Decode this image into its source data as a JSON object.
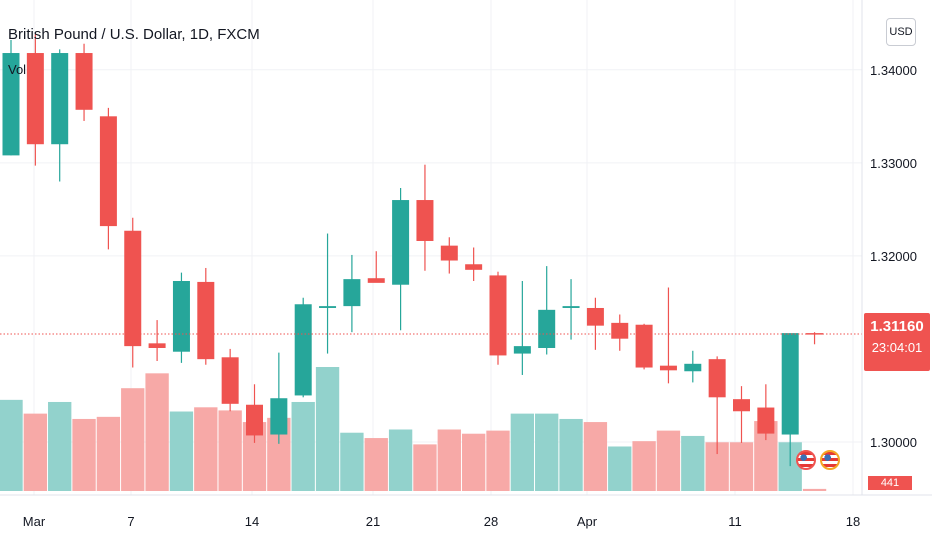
{
  "header": {
    "title": "British Pound / U.S. Dollar, 1D, FXCM",
    "volume_label": "Vol",
    "currency_button": "USD"
  },
  "price_badge": {
    "price": "1.31160",
    "countdown": "23:04:01"
  },
  "volume_badge": "441",
  "colors": {
    "up": "#26a69a",
    "down": "#ef5350",
    "up_volume": "#92d2cc",
    "down_volume": "#f7a9a7",
    "last_price_line": "#ef5350"
  },
  "event_icons": [
    "us-flag-icon",
    "us-flag-icon"
  ],
  "chart_data": {
    "type": "candlestick",
    "title": "British Pound / U.S. Dollar, 1D, FXCM",
    "x_tick_labels": [
      "Mar",
      "7",
      "14",
      "21",
      "28",
      "Apr",
      "11",
      "18"
    ],
    "y_tick_labels": [
      "1.34000",
      "1.33000",
      "1.32000",
      "1.30000"
    ],
    "ylim": [
      1.2943,
      1.3475
    ],
    "grid": true,
    "last_price": 1.3116,
    "candles": [
      {
        "date": "Feb 28",
        "o": 1.3308,
        "h": 1.3432,
        "l": 1.3308,
        "c": 1.3418
      },
      {
        "date": "Mar 1",
        "o": 1.3418,
        "h": 1.3438,
        "l": 1.3297,
        "c": 1.332
      },
      {
        "date": "Mar 2",
        "o": 1.332,
        "h": 1.3422,
        "l": 1.328,
        "c": 1.3418
      },
      {
        "date": "Mar 3",
        "o": 1.3418,
        "h": 1.3428,
        "l": 1.3345,
        "c": 1.3357
      },
      {
        "date": "Mar 4",
        "o": 1.335,
        "h": 1.3359,
        "l": 1.3207,
        "c": 1.3232
      },
      {
        "date": "Mar 7",
        "o": 1.3227,
        "h": 1.3241,
        "l": 1.308,
        "c": 1.3103
      },
      {
        "date": "Mar 8",
        "o": 1.3106,
        "h": 1.3131,
        "l": 1.3087,
        "c": 1.3101
      },
      {
        "date": "Mar 9",
        "o": 1.3097,
        "h": 1.3182,
        "l": 1.3085,
        "c": 1.3173
      },
      {
        "date": "Mar 10",
        "o": 1.3172,
        "h": 1.3187,
        "l": 1.3083,
        "c": 1.3089
      },
      {
        "date": "Mar 11",
        "o": 1.3091,
        "h": 1.31,
        "l": 1.3033,
        "c": 1.3041
      },
      {
        "date": "Mar 14",
        "o": 1.304,
        "h": 1.3062,
        "l": 1.2999,
        "c": 1.3007
      },
      {
        "date": "Mar 15",
        "o": 1.3008,
        "h": 1.3096,
        "l": 1.2998,
        "c": 1.3047
      },
      {
        "date": "Mar 16",
        "o": 1.305,
        "h": 1.3155,
        "l": 1.3048,
        "c": 1.3148
      },
      {
        "date": "Mar 17",
        "o": 1.3144,
        "h": 1.3224,
        "l": 1.3095,
        "c": 1.3146
      },
      {
        "date": "Mar 18",
        "o": 1.3146,
        "h": 1.3201,
        "l": 1.3118,
        "c": 1.3175
      },
      {
        "date": "Mar 21",
        "o": 1.3176,
        "h": 1.3205,
        "l": 1.3174,
        "c": 1.3171
      },
      {
        "date": "Mar 22",
        "o": 1.3169,
        "h": 1.3273,
        "l": 1.312,
        "c": 1.326
      },
      {
        "date": "Mar 23",
        "o": 1.326,
        "h": 1.3298,
        "l": 1.3184,
        "c": 1.3216
      },
      {
        "date": "Mar 24",
        "o": 1.3211,
        "h": 1.322,
        "l": 1.3181,
        "c": 1.3195
      },
      {
        "date": "Mar 25",
        "o": 1.3191,
        "h": 1.3209,
        "l": 1.3173,
        "c": 1.3185
      },
      {
        "date": "Mar 28",
        "o": 1.3179,
        "h": 1.3183,
        "l": 1.3083,
        "c": 1.3093
      },
      {
        "date": "Mar 29",
        "o": 1.3095,
        "h": 1.3173,
        "l": 1.3072,
        "c": 1.3103
      },
      {
        "date": "Mar 30",
        "o": 1.3101,
        "h": 1.3189,
        "l": 1.3094,
        "c": 1.3142
      },
      {
        "date": "Mar 31",
        "o": 1.3144,
        "h": 1.3175,
        "l": 1.311,
        "c": 1.3146
      },
      {
        "date": "Apr 1",
        "o": 1.3144,
        "h": 1.3155,
        "l": 1.3099,
        "c": 1.3125
      },
      {
        "date": "Apr 4",
        "o": 1.3128,
        "h": 1.3137,
        "l": 1.3098,
        "c": 1.3111
      },
      {
        "date": "Apr 5",
        "o": 1.3126,
        "h": 1.3127,
        "l": 1.3078,
        "c": 1.308
      },
      {
        "date": "Apr 6",
        "o": 1.3082,
        "h": 1.3166,
        "l": 1.3063,
        "c": 1.3077
      },
      {
        "date": "Apr 7",
        "o": 1.3076,
        "h": 1.3098,
        "l": 1.3064,
        "c": 1.3084
      },
      {
        "date": "Apr 8",
        "o": 1.3089,
        "h": 1.3092,
        "l": 1.2987,
        "c": 1.3048
      },
      {
        "date": "Apr 11",
        "o": 1.3046,
        "h": 1.306,
        "l": 1.2999,
        "c": 1.3033
      },
      {
        "date": "Apr 12",
        "o": 1.3037,
        "h": 1.3062,
        "l": 1.3002,
        "c": 1.3009
      },
      {
        "date": "Apr 13",
        "o": 1.3008,
        "h": 1.3116,
        "l": 1.2974,
        "c": 1.3117
      },
      {
        "date": "Apr 14",
        "o": 1.3117,
        "h": 1.3118,
        "l": 1.3105,
        "c": 1.3116
      }
    ],
    "volume": [
      {
        "dir": "up",
        "v": 0.735
      },
      {
        "dir": "down",
        "v": 0.624
      },
      {
        "dir": "up",
        "v": 0.718
      },
      {
        "dir": "down",
        "v": 0.581
      },
      {
        "dir": "down",
        "v": 0.598
      },
      {
        "dir": "down",
        "v": 0.829
      },
      {
        "dir": "down",
        "v": 0.949
      },
      {
        "dir": "up",
        "v": 0.641
      },
      {
        "dir": "down",
        "v": 0.675
      },
      {
        "dir": "down",
        "v": 0.65
      },
      {
        "dir": "down",
        "v": 0.556
      },
      {
        "dir": "down",
        "v": 0.59
      },
      {
        "dir": "up",
        "v": 0.718
      },
      {
        "dir": "up",
        "v": 1.0
      },
      {
        "dir": "up",
        "v": 0.47
      },
      {
        "dir": "down",
        "v": 0.427
      },
      {
        "dir": "up",
        "v": 0.496
      },
      {
        "dir": "down",
        "v": 0.376
      },
      {
        "dir": "down",
        "v": 0.496
      },
      {
        "dir": "down",
        "v": 0.462
      },
      {
        "dir": "down",
        "v": 0.487
      },
      {
        "dir": "up",
        "v": 0.624
      },
      {
        "dir": "up",
        "v": 0.624
      },
      {
        "dir": "up",
        "v": 0.581
      },
      {
        "dir": "down",
        "v": 0.556
      },
      {
        "dir": "up",
        "v": 0.359
      },
      {
        "dir": "down",
        "v": 0.402
      },
      {
        "dir": "down",
        "v": 0.487
      },
      {
        "dir": "up",
        "v": 0.444
      },
      {
        "dir": "down",
        "v": 0.393
      },
      {
        "dir": "down",
        "v": 0.393
      },
      {
        "dir": "down",
        "v": 0.564
      },
      {
        "dir": "up",
        "v": 0.393
      },
      {
        "dir": "down",
        "v": 0.017
      }
    ]
  }
}
